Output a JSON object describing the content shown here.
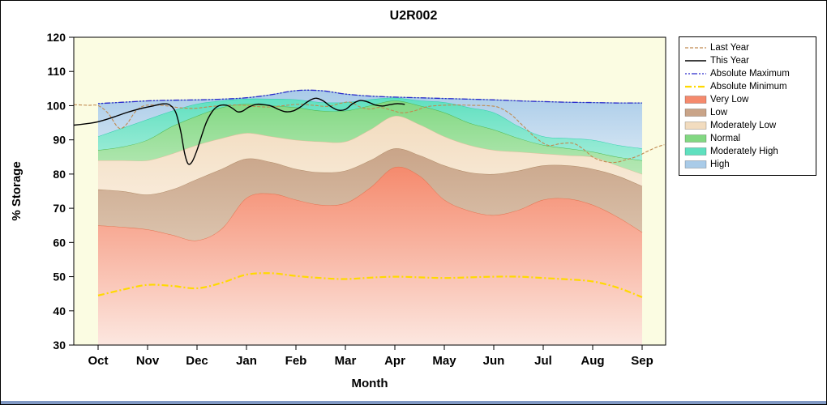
{
  "page": {
    "bottom_bar_color": "#8199c4"
  },
  "chart_data": {
    "type": "area",
    "title": "U2R002",
    "xlabel": "Month",
    "ylabel": "% Storage",
    "ylim": [
      30,
      120
    ],
    "y_ticks": [
      120,
      110,
      100,
      90,
      80,
      70,
      60,
      50,
      40,
      30
    ],
    "months": [
      "Oct",
      "Nov",
      "Dec",
      "Jan",
      "Feb",
      "Mar",
      "Apr",
      "May",
      "Jun",
      "Jul",
      "Aug",
      "Sep"
    ],
    "plot_bg": "#fbfce2",
    "sample_x": [
      0,
      0.5,
      1,
      1.5,
      2,
      2.5,
      3,
      3.5,
      4,
      4.5,
      5,
      5.5,
      6,
      6.5,
      7,
      7.5,
      8,
      8.5,
      9,
      9.5,
      10,
      10.5,
      11
    ],
    "bands": [
      {
        "name": "Very Low",
        "top": "#f58a6d",
        "bottom_color": "#fce7e0",
        "edge": "#e4714e",
        "values": [
          65,
          64.5,
          63.8,
          62.2,
          60.6,
          64,
          73,
          74.3,
          72.5,
          71,
          71.5,
          76,
          82,
          79.5,
          72.5,
          69.3,
          68,
          69.5,
          72.5,
          72.8,
          71,
          67.5,
          63
        ]
      },
      {
        "name": "Low",
        "top": "#c9a488",
        "bottom_color": "#dbc3ad",
        "edge": "#b08a66",
        "values": [
          75.5,
          75,
          74,
          75.5,
          78.5,
          81.5,
          84.5,
          83.5,
          81.5,
          80.5,
          81,
          84,
          87.5,
          85.5,
          82.5,
          80.5,
          80,
          81,
          82.5,
          82.5,
          81.5,
          79.5,
          76.5
        ]
      },
      {
        "name": "Moderately Low",
        "top": "#f2dcbf",
        "bottom_color": "#f8ead8",
        "edge": "#ddc19c",
        "values": [
          84,
          84,
          84,
          86,
          88.5,
          90.5,
          92,
          91,
          90,
          89.5,
          89.5,
          93,
          97,
          94.5,
          91,
          88.5,
          87,
          86.5,
          86,
          85.5,
          85,
          82.5,
          80
        ]
      },
      {
        "name": "Normal",
        "top": "#82d882",
        "bottom_color": "#b6e8b6",
        "edge": "#4db84d",
        "values": [
          87,
          88,
          90,
          94,
          97,
          99.5,
          100.5,
          100,
          99.5,
          98.5,
          98.5,
          100,
          101.5,
          100,
          98,
          95,
          93,
          90.5,
          88.5,
          87.5,
          86.5,
          85,
          84
        ]
      },
      {
        "name": "Moderately High",
        "top": "#5fe0bf",
        "bottom_color": "#a0ecd9",
        "edge": "#2fcfae",
        "values": [
          91,
          93.5,
          96,
          98.5,
          100.5,
          101.5,
          102,
          102,
          101.8,
          101,
          101,
          101.8,
          102.3,
          101.5,
          101,
          99.5,
          98,
          94,
          91,
          90.5,
          90,
          88.5,
          87.5
        ]
      },
      {
        "name": "High",
        "top": "#a9cbe8",
        "bottom_color": "#cfe2f2",
        "edge": "#7fa8d0",
        "values": [
          100.6,
          101,
          101.4,
          101.6,
          101.7,
          101.9,
          102.3,
          103.2,
          104.4,
          104.4,
          103.4,
          102.8,
          102.5,
          102.3,
          102.1,
          101.9,
          101.7,
          101.4,
          101.2,
          101,
          100.9,
          100.8,
          100.8
        ]
      }
    ],
    "lines": [
      {
        "name": "Absolute Minimum",
        "color": "#ffd900",
        "width": 2.2,
        "dash": "8 3 2 3",
        "points": [
          [
            0,
            44.5
          ],
          [
            0.5,
            46.2
          ],
          [
            1,
            47.6
          ],
          [
            1.5,
            47.3
          ],
          [
            2,
            46.6
          ],
          [
            2.5,
            48.2
          ],
          [
            3,
            50.6
          ],
          [
            3.5,
            51
          ],
          [
            4,
            50.2
          ],
          [
            4.5,
            49.6
          ],
          [
            5,
            49.3
          ],
          [
            5.5,
            49.7
          ],
          [
            6,
            50
          ],
          [
            6.5,
            49.8
          ],
          [
            7,
            49.6
          ],
          [
            7.5,
            49.8
          ],
          [
            8,
            50
          ],
          [
            8.5,
            50
          ],
          [
            9,
            49.6
          ],
          [
            9.5,
            49.2
          ],
          [
            10,
            48.6
          ],
          [
            10.5,
            46.8
          ],
          [
            11,
            44
          ]
        ]
      },
      {
        "name": "Last Year",
        "color": "#c08a50",
        "width": 1.1,
        "dash": "4 2",
        "points": [
          [
            -0.49,
            100.3
          ],
          [
            -0.2,
            100.1
          ],
          [
            0,
            100
          ],
          [
            0.2,
            97.8
          ],
          [
            0.38,
            94
          ],
          [
            0.48,
            93.4
          ],
          [
            0.6,
            95
          ],
          [
            0.75,
            98.2
          ],
          [
            0.9,
            99.8
          ],
          [
            1.05,
            100.2
          ],
          [
            1.35,
            100
          ],
          [
            1.65,
            99.4
          ],
          [
            1.95,
            99.2
          ],
          [
            2.25,
            99.7
          ],
          [
            2.55,
            100.1
          ],
          [
            2.85,
            100.2
          ],
          [
            3.15,
            99.8
          ],
          [
            3.45,
            99.6
          ],
          [
            3.75,
            100
          ],
          [
            4.05,
            100.4
          ],
          [
            4.35,
            100.1
          ],
          [
            4.65,
            99.8
          ],
          [
            4.9,
            100.7
          ],
          [
            5.1,
            101
          ],
          [
            5.3,
            99.6
          ],
          [
            5.5,
            99
          ],
          [
            5.7,
            99.5
          ],
          [
            5.95,
            98.6
          ],
          [
            6.15,
            97.9
          ],
          [
            6.4,
            98.5
          ],
          [
            6.65,
            99.7
          ],
          [
            6.95,
            100.1
          ],
          [
            7.25,
            100.2
          ],
          [
            7.55,
            100.1
          ],
          [
            7.85,
            100
          ],
          [
            8.1,
            99.5
          ],
          [
            8.35,
            97.4
          ],
          [
            8.6,
            94
          ],
          [
            8.85,
            90.6
          ],
          [
            9.1,
            88.4
          ],
          [
            9.35,
            88.9
          ],
          [
            9.6,
            89
          ],
          [
            9.8,
            87.4
          ],
          [
            10,
            85
          ],
          [
            10.2,
            83.8
          ],
          [
            10.45,
            83.4
          ],
          [
            10.7,
            84.3
          ],
          [
            10.9,
            85.2
          ],
          [
            11.1,
            86.6
          ],
          [
            11.3,
            87.9
          ],
          [
            11.45,
            88.6
          ]
        ]
      },
      {
        "name": "Absolute Maximum",
        "color": "#2929cc",
        "width": 1.3,
        "dash": "2 2 2 2 7 2",
        "points": [
          [
            0,
            100.6
          ],
          [
            0.5,
            101
          ],
          [
            1,
            101.4
          ],
          [
            1.5,
            101.6
          ],
          [
            2,
            101.7
          ],
          [
            2.5,
            101.9
          ],
          [
            3,
            102.3
          ],
          [
            3.5,
            103.2
          ],
          [
            4,
            104.4
          ],
          [
            4.5,
            104.4
          ],
          [
            5,
            103.4
          ],
          [
            5.5,
            102.8
          ],
          [
            6,
            102.5
          ],
          [
            6.5,
            102.3
          ],
          [
            7,
            102.1
          ],
          [
            7.5,
            101.9
          ],
          [
            8,
            101.7
          ],
          [
            8.5,
            101.4
          ],
          [
            9,
            101.2
          ],
          [
            9.5,
            101
          ],
          [
            10,
            100.9
          ],
          [
            10.5,
            100.8
          ],
          [
            11,
            100.8
          ]
        ]
      },
      {
        "name": "This Year",
        "color": "#000000",
        "width": 1.4,
        "dash": "",
        "points": [
          [
            -0.49,
            94.3
          ],
          [
            -0.2,
            94.8
          ],
          [
            0,
            95.3
          ],
          [
            0.3,
            96.6
          ],
          [
            0.6,
            98.1
          ],
          [
            0.9,
            99.3
          ],
          [
            1.1,
            99.9
          ],
          [
            1.3,
            100.5
          ],
          [
            1.45,
            100.2
          ],
          [
            1.57,
            98
          ],
          [
            1.67,
            92.5
          ],
          [
            1.75,
            86
          ],
          [
            1.82,
            83
          ],
          [
            1.9,
            83.6
          ],
          [
            2,
            87
          ],
          [
            2.1,
            91.5
          ],
          [
            2.2,
            95.5
          ],
          [
            2.33,
            98.7
          ],
          [
            2.45,
            100
          ],
          [
            2.6,
            100.1
          ],
          [
            2.72,
            99.2
          ],
          [
            2.82,
            98.2
          ],
          [
            2.92,
            98.4
          ],
          [
            3.05,
            99.6
          ],
          [
            3.2,
            100.4
          ],
          [
            3.35,
            100.3
          ],
          [
            3.5,
            99.9
          ],
          [
            3.65,
            98.9
          ],
          [
            3.8,
            98.2
          ],
          [
            3.95,
            98.5
          ],
          [
            4.1,
            99.7
          ],
          [
            4.25,
            101.3
          ],
          [
            4.4,
            102.2
          ],
          [
            4.55,
            101.4
          ],
          [
            4.7,
            99.8
          ],
          [
            4.85,
            98.7
          ],
          [
            5,
            98.9
          ],
          [
            5.15,
            100.6
          ],
          [
            5.3,
            101.5
          ],
          [
            5.45,
            101.1
          ],
          [
            5.6,
            100.2
          ],
          [
            5.75,
            99.9
          ],
          [
            5.9,
            100.3
          ],
          [
            6.05,
            100.6
          ],
          [
            6.2,
            100.4
          ]
        ]
      }
    ],
    "legend": [
      {
        "label": "Last Year",
        "swatch": "line",
        "color": "#c08a50",
        "dash": "4 2",
        "width": 1.2
      },
      {
        "label": "This Year",
        "swatch": "line",
        "color": "#000000",
        "dash": "",
        "width": 1.4
      },
      {
        "label": "Absolute Maximum",
        "swatch": "line",
        "color": "#2929cc",
        "dash": "2 2 2 2 7 2",
        "width": 1.3
      },
      {
        "label": "Absolute Minimum",
        "swatch": "line",
        "color": "#ffd900",
        "dash": "8 3 2 3",
        "width": 2.2
      },
      {
        "label": "Very Low",
        "swatch": "rect",
        "color": "#f58a6d"
      },
      {
        "label": "Low",
        "swatch": "rect",
        "color": "#c9a488"
      },
      {
        "label": "Moderately Low",
        "swatch": "rect",
        "color": "#f2dcbf"
      },
      {
        "label": "Normal",
        "swatch": "rect",
        "color": "#82d882"
      },
      {
        "label": "Moderately High",
        "swatch": "rect",
        "color": "#5fe0bf"
      },
      {
        "label": "High",
        "swatch": "rect",
        "color": "#a9cbe8"
      }
    ]
  }
}
